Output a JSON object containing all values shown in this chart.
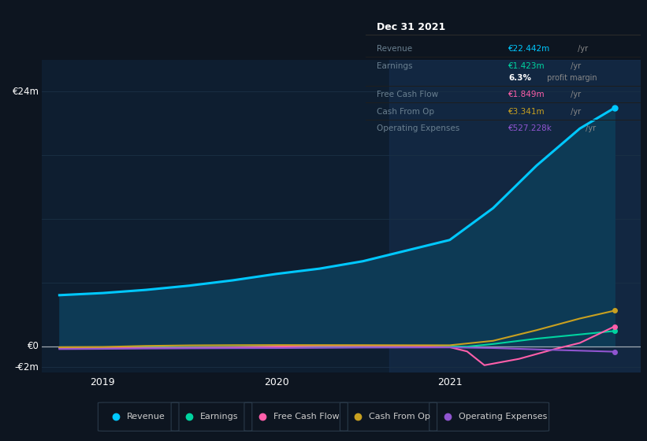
{
  "bg_color": "#0d1520",
  "chart_area_color": "#0e1e30",
  "grid_color": "#1a3045",
  "text_color": "#ffffff",
  "dim_text_color": "#7a8fa0",
  "ylim": [
    -2500000,
    27000000
  ],
  "ytick_values": [
    -2000000,
    0,
    24000000
  ],
  "ytick_labels": [
    "-€2m",
    "€0",
    "€24m"
  ],
  "xtick_values": [
    2019.0,
    2020.0,
    2021.0
  ],
  "xtick_labels": [
    "2019",
    "2020",
    "2021"
  ],
  "xlim_min": 2018.65,
  "xlim_max": 2022.1,
  "vspan_x1": 2020.65,
  "vspan_x2": 2022.1,
  "series_Revenue_color": "#00c8ff",
  "series_Revenue_x": [
    2018.75,
    2019.0,
    2019.25,
    2019.5,
    2019.75,
    2020.0,
    2020.25,
    2020.5,
    2020.75,
    2021.0,
    2021.25,
    2021.5,
    2021.75,
    2021.95
  ],
  "series_Revenue_y": [
    4800000,
    5000000,
    5300000,
    5700000,
    6200000,
    6800000,
    7300000,
    8000000,
    9000000,
    10000000,
    13000000,
    17000000,
    20500000,
    22442000
  ],
  "series_Earnings_color": "#00d4a0",
  "series_Earnings_x": [
    2018.75,
    2019.0,
    2019.25,
    2019.5,
    2019.75,
    2020.0,
    2020.25,
    2020.5,
    2020.75,
    2021.0,
    2021.1,
    2021.25,
    2021.5,
    2021.75,
    2021.95
  ],
  "series_Earnings_y": [
    -200000,
    -200000,
    -150000,
    -100000,
    -80000,
    -50000,
    -30000,
    -20000,
    -15000,
    -20000,
    -50000,
    200000,
    700000,
    1100000,
    1423000
  ],
  "series_FCF_color": "#ff5faa",
  "series_FCF_x": [
    2018.75,
    2019.0,
    2019.25,
    2019.5,
    2019.75,
    2020.0,
    2020.25,
    2020.5,
    2020.75,
    2021.0,
    2021.1,
    2021.2,
    2021.4,
    2021.6,
    2021.75,
    2021.95
  ],
  "series_FCF_y": [
    -200000,
    -200000,
    -180000,
    -150000,
    -120000,
    -50000,
    20000,
    30000,
    20000,
    -100000,
    -500000,
    -1800000,
    -1200000,
    -300000,
    300000,
    1849000
  ],
  "series_CashFromOp_color": "#c8a020",
  "series_CashFromOp_x": [
    2018.75,
    2019.0,
    2019.25,
    2019.5,
    2019.75,
    2020.0,
    2020.25,
    2020.5,
    2020.75,
    2021.0,
    2021.25,
    2021.5,
    2021.75,
    2021.95
  ],
  "series_CashFromOp_y": [
    -100000,
    -80000,
    20000,
    70000,
    90000,
    100000,
    100000,
    95000,
    85000,
    80000,
    500000,
    1500000,
    2600000,
    3341000
  ],
  "series_OpEx_color": "#9055d0",
  "series_OpEx_x": [
    2018.75,
    2019.0,
    2019.25,
    2019.5,
    2019.75,
    2020.0,
    2020.25,
    2020.5,
    2020.75,
    2021.0,
    2021.25,
    2021.5,
    2021.75,
    2021.95
  ],
  "series_OpEx_y": [
    -280000,
    -260000,
    -230000,
    -210000,
    -195000,
    -185000,
    -165000,
    -140000,
    -130000,
    -125000,
    -180000,
    -310000,
    -430000,
    -527228
  ],
  "tooltip_title": "Dec 31 2021",
  "tooltip_rows": [
    {
      "label": "Revenue",
      "value": "€22.442m",
      "unit": " /yr",
      "value_color": "#00c8ff"
    },
    {
      "label": "Earnings",
      "value": "€1.423m",
      "unit": " /yr",
      "value_color": "#00d4a0"
    },
    {
      "label": "",
      "value": "6.3%",
      "unit": " profit margin",
      "value_color": "#ffffff",
      "bold": true
    },
    {
      "label": "Free Cash Flow",
      "value": "€1.849m",
      "unit": " /yr",
      "value_color": "#ff5faa"
    },
    {
      "label": "Cash From Op",
      "value": "€3.341m",
      "unit": " /yr",
      "value_color": "#c8a020"
    },
    {
      "label": "Operating Expenses",
      "value": "€527.228k",
      "unit": " /yr",
      "value_color": "#9055d0"
    }
  ],
  "legend_items": [
    {
      "label": "Revenue",
      "color": "#00c8ff"
    },
    {
      "label": "Earnings",
      "color": "#00d4a0"
    },
    {
      "label": "Free Cash Flow",
      "color": "#ff5faa"
    },
    {
      "label": "Cash From Op",
      "color": "#c8a020"
    },
    {
      "label": "Operating Expenses",
      "color": "#9055d0"
    }
  ]
}
